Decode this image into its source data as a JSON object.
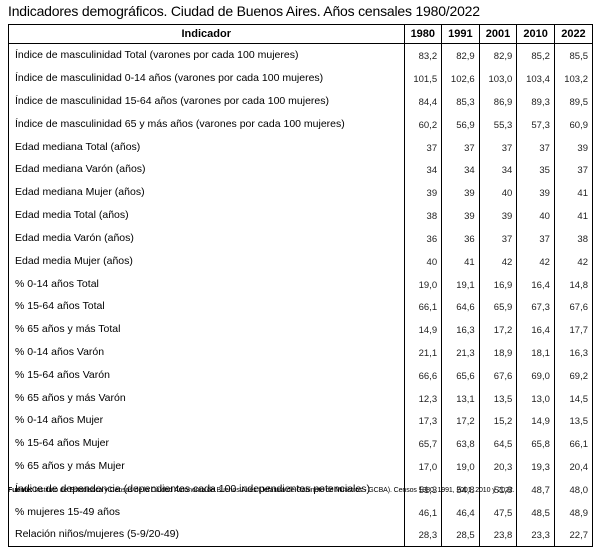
{
  "title": "Indicadores demográficos. Ciudad de Buenos Aires. Años censales 1980/2022",
  "table": {
    "headers": [
      "Indicador",
      "1980",
      "1991",
      "2001",
      "2010",
      "2022"
    ],
    "rows": [
      {
        "label": "Índice de masculinidad Total (varones por cada 100 mujeres)",
        "values": [
          "83,2",
          "82,9",
          "82,9",
          "85,2",
          "85,5"
        ]
      },
      {
        "label": "Índice de masculinidad 0-14 años (varones por cada 100 mujeres)",
        "values": [
          "101,5",
          "102,6",
          "103,0",
          "103,4",
          "103,2"
        ]
      },
      {
        "label": "Índice de masculinidad 15-64 años (varones por cada 100 mujeres)",
        "values": [
          "84,4",
          "85,3",
          "86,9",
          "89,3",
          "89,5"
        ]
      },
      {
        "label": "Índice de masculinidad 65 y más años (varones por cada 100 mujeres)",
        "values": [
          "60,2",
          "56,9",
          "55,3",
          "57,3",
          "60,9"
        ]
      },
      {
        "label": "Edad mediana Total (años)",
        "values": [
          "37",
          "37",
          "37",
          "37",
          "39"
        ]
      },
      {
        "label": "Edad mediana Varón (años)",
        "values": [
          "34",
          "34",
          "34",
          "35",
          "37"
        ]
      },
      {
        "label": "Edad mediana Mujer (años)",
        "values": [
          "39",
          "39",
          "40",
          "39",
          "41"
        ]
      },
      {
        "label": "Edad media Total (años)",
        "values": [
          "38",
          "39",
          "39",
          "40",
          "41"
        ]
      },
      {
        "label": "Edad media Varón (años)",
        "values": [
          "36",
          "36",
          "37",
          "37",
          "38"
        ]
      },
      {
        "label": "Edad media Mujer (años)",
        "values": [
          "40",
          "41",
          "42",
          "42",
          "42"
        ]
      },
      {
        "label": "% 0-14 años Total",
        "values": [
          "19,0",
          "19,1",
          "16,9",
          "16,4",
          "14,8"
        ]
      },
      {
        "label": "% 15-64 años Total",
        "values": [
          "66,1",
          "64,6",
          "65,9",
          "67,3",
          "67,6"
        ]
      },
      {
        "label": "% 65 años y más Total",
        "values": [
          "14,9",
          "16,3",
          "17,2",
          "16,4",
          "17,7"
        ]
      },
      {
        "label": "% 0-14 años Varón",
        "values": [
          "21,1",
          "21,3",
          "18,9",
          "18,1",
          "16,3"
        ]
      },
      {
        "label": "% 15-64 años Varón",
        "values": [
          "66,6",
          "65,6",
          "67,6",
          "69,0",
          "69,2"
        ]
      },
      {
        "label": "% 65 años y más Varón",
        "values": [
          "12,3",
          "13,1",
          "13,5",
          "13,0",
          "14,5"
        ]
      },
      {
        "label": "% 0-14 años Mujer",
        "values": [
          "17,3",
          "17,2",
          "15,2",
          "14,9",
          "13,5"
        ]
      },
      {
        "label": "% 15-64 años Mujer",
        "values": [
          "65,7",
          "63,8",
          "64,5",
          "65,8",
          "66,1"
        ]
      },
      {
        "label": "% 65 años y más Mujer",
        "values": [
          "17,0",
          "19,0",
          "20,3",
          "19,3",
          "20,4"
        ]
      },
      {
        "label": "Índice de dependencia (dependientes cada 100 independientes potenciales)",
        "values": [
          "51,3",
          "54,8",
          "51,8",
          "48,7",
          "48,0"
        ]
      },
      {
        "label": "% mujeres 15-49 años",
        "values": [
          "46,1",
          "46,4",
          "47,5",
          "48,5",
          "48,9"
        ]
      },
      {
        "label": "Relación niños/mujeres (5-9/20-49)",
        "values": [
          "28,3",
          "28,5",
          "23,8",
          "23,3",
          "22,7"
        ]
      }
    ]
  },
  "source": {
    "label": "Fuente:",
    "text": "Instituto de Estadística y Censos de la Ciudad Autónoma de Buenos Aires (Jefatura de Gabinete de Ministros - GCBA). Censos 1980, 1991, 2001, 2010 y 2022."
  }
}
